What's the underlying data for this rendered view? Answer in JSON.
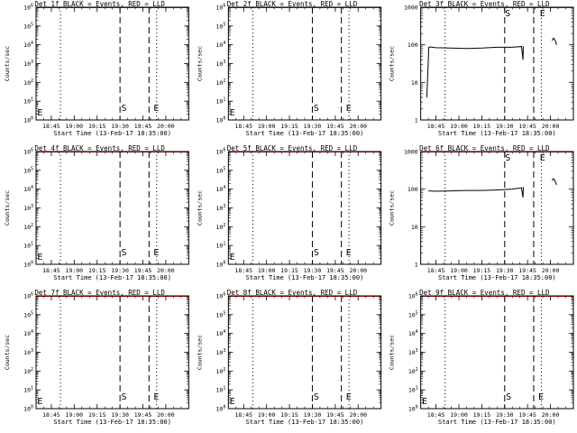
{
  "colors": {
    "events": "#000000",
    "lld": "#ff0000",
    "background": "#ffffff"
  },
  "chart_data": [
    {
      "type": "line",
      "title": "Det 1f BLACK = Events, RED = LLD",
      "xlabel": "Start Time (13-Feb-17 18:35:00)",
      "ylabel": "Counts/sec",
      "scale": "log",
      "ytick_labels": [
        "10^0",
        "10^1",
        "10^2",
        "10^3",
        "10^4",
        "10^5",
        "10^6"
      ],
      "xtick_labels": [
        "18:45",
        "19:00",
        "19:15",
        "19:30",
        "19:45",
        "20:00"
      ],
      "markers": {
        "E1": "E",
        "S": "S",
        "E2": "E"
      },
      "series": []
    },
    {
      "type": "line",
      "title": "Det 2f BLACK = Events, RED = LLD",
      "xlabel": "Start Time (13-Feb-17 18:35:00)",
      "ylabel": "Counts/sec",
      "scale": "log",
      "ytick_labels": [
        "10^0",
        "10^1",
        "10^2",
        "10^3",
        "10^4",
        "10^5",
        "10^6"
      ],
      "xtick_labels": [
        "18:45",
        "19:00",
        "19:15",
        "19:30",
        "19:45",
        "20:00"
      ],
      "markers": {
        "E1": "E",
        "S": "S",
        "E2": "E"
      },
      "series": []
    },
    {
      "type": "line",
      "title": "Det 3f BLACK = Events, RED = LLD",
      "xlabel": "Start Time (13-Feb-17 18:35:00)",
      "ylabel": "Counts/sec",
      "scale": "log",
      "ytick_labels": [
        "1",
        "10",
        "100",
        "1000"
      ],
      "xtick_labels": [
        "18:45",
        "19:00",
        "19:15",
        "19:30",
        "19:45",
        "20:00"
      ],
      "markers": {
        "E1": "E",
        "S": "S",
        "E2": "E"
      },
      "series": [
        {
          "segments": [
            [
              [
                4,
                4
              ],
              [
                5,
                40
              ],
              [
                5.2,
                85
              ],
              [
                6,
                88
              ],
              [
                10,
                84
              ],
              [
                20,
                82
              ],
              [
                30,
                80
              ],
              [
                40,
                82
              ],
              [
                50,
                86
              ],
              [
                60,
                86
              ],
              [
                66,
                90
              ],
              [
                67,
                40
              ],
              [
                67.2,
                92
              ]
            ],
            [
              [
                86,
                130
              ],
              [
                87,
                150
              ],
              [
                88,
                135
              ],
              [
                89,
                100
              ]
            ]
          ]
        }
      ]
    },
    {
      "type": "line",
      "title": "Det 4f BLACK = Events, RED = LLD",
      "xlabel": "Start Time (13-Feb-17 18:35:00)",
      "ylabel": "Counts/sec",
      "scale": "log",
      "ytick_labels": [
        "10^0",
        "10^1",
        "10^2",
        "10^3",
        "10^4",
        "10^5",
        "10^6"
      ],
      "xtick_labels": [
        "18:45",
        "19:00",
        "19:15",
        "19:30",
        "19:45",
        "20:00"
      ],
      "markers": {
        "E1": "E",
        "S": "S",
        "E2": "E"
      },
      "series": []
    },
    {
      "type": "line",
      "title": "Det 5f BLACK = Events, RED = LLD",
      "xlabel": "Start Time (13-Feb-17 18:35:00)",
      "ylabel": "Counts/sec",
      "scale": "log",
      "ytick_labels": [
        "10^0",
        "10^1",
        "10^2",
        "10^3",
        "10^4",
        "10^5",
        "10^6"
      ],
      "xtick_labels": [
        "18:45",
        "19:00",
        "19:15",
        "19:30",
        "19:45",
        "20:00"
      ],
      "markers": {
        "E1": "E",
        "S": "S",
        "E2": "E"
      },
      "series": []
    },
    {
      "type": "line",
      "title": "Det 6f BLACK = Events, RED = LLD",
      "xlabel": "Start Time (13-Feb-17 18:35:00)",
      "ylabel": "Counts/sec",
      "scale": "log",
      "ytick_labels": [
        "1",
        "10",
        "100",
        "1000"
      ],
      "xtick_labels": [
        "18:45",
        "19:00",
        "19:15",
        "19:30",
        "19:45",
        "20:00"
      ],
      "markers": {
        "E1": "E",
        "S": "S",
        "E2": "E"
      },
      "series": [
        {
          "segments": [
            [
              [
                5,
                90
              ],
              [
                10,
                88
              ],
              [
                20,
                90
              ],
              [
                30,
                92
              ],
              [
                40,
                92
              ],
              [
                50,
                95
              ],
              [
                60,
                100
              ],
              [
                66,
                108
              ],
              [
                67,
                60
              ],
              [
                67.2,
                115
              ]
            ],
            [
              [
                86,
                170
              ],
              [
                87,
                190
              ],
              [
                88,
                165
              ],
              [
                89,
                130
              ]
            ]
          ]
        }
      ]
    },
    {
      "type": "line",
      "title": "Det 7f BLACK = Events, RED = LLD",
      "xlabel": "Start Time (13-Feb-17 18:35:00)",
      "ylabel": "Counts/sec",
      "scale": "log",
      "ytick_labels": [
        "10^0",
        "10^1",
        "10^2",
        "10^3",
        "10^4",
        "10^5",
        "10^6"
      ],
      "xtick_labels": [
        "18:45",
        "19:00",
        "19:15",
        "19:30",
        "19:45",
        "20:00"
      ],
      "markers": {
        "E1": "E",
        "S": "S",
        "E2": "E"
      },
      "series": []
    },
    {
      "type": "line",
      "title": "Det 8f BLACK = Events, RED = LLD",
      "xlabel": "Start Time (13-Feb-17 18:35:00)",
      "ylabel": "Counts/sec",
      "scale": "log",
      "ytick_labels": [
        "10^0",
        "10^1",
        "10^2",
        "10^3",
        "10^4",
        "10^5",
        "10^6"
      ],
      "xtick_labels": [
        "18:45",
        "19:00",
        "19:15",
        "19:30",
        "19:45",
        "20:00"
      ],
      "markers": {
        "E1": "E",
        "S": "S",
        "E2": "E"
      },
      "series": []
    },
    {
      "type": "line",
      "title": "Det 9f BLACK = Events, RED = LLD",
      "xlabel": "Start Time (13-Feb-17 18:35:00)",
      "ylabel": "Counts/sec",
      "scale": "log",
      "ytick_labels": [
        "10^0",
        "10^1",
        "10^2",
        "10^3",
        "10^4",
        "10^5",
        "10^6"
      ],
      "xtick_labels": [
        "18:45",
        "19:00",
        "19:15",
        "19:30",
        "19:45",
        "20:00"
      ],
      "markers": {
        "E1": "E",
        "S": "S",
        "E2": "E"
      },
      "series": []
    }
  ]
}
